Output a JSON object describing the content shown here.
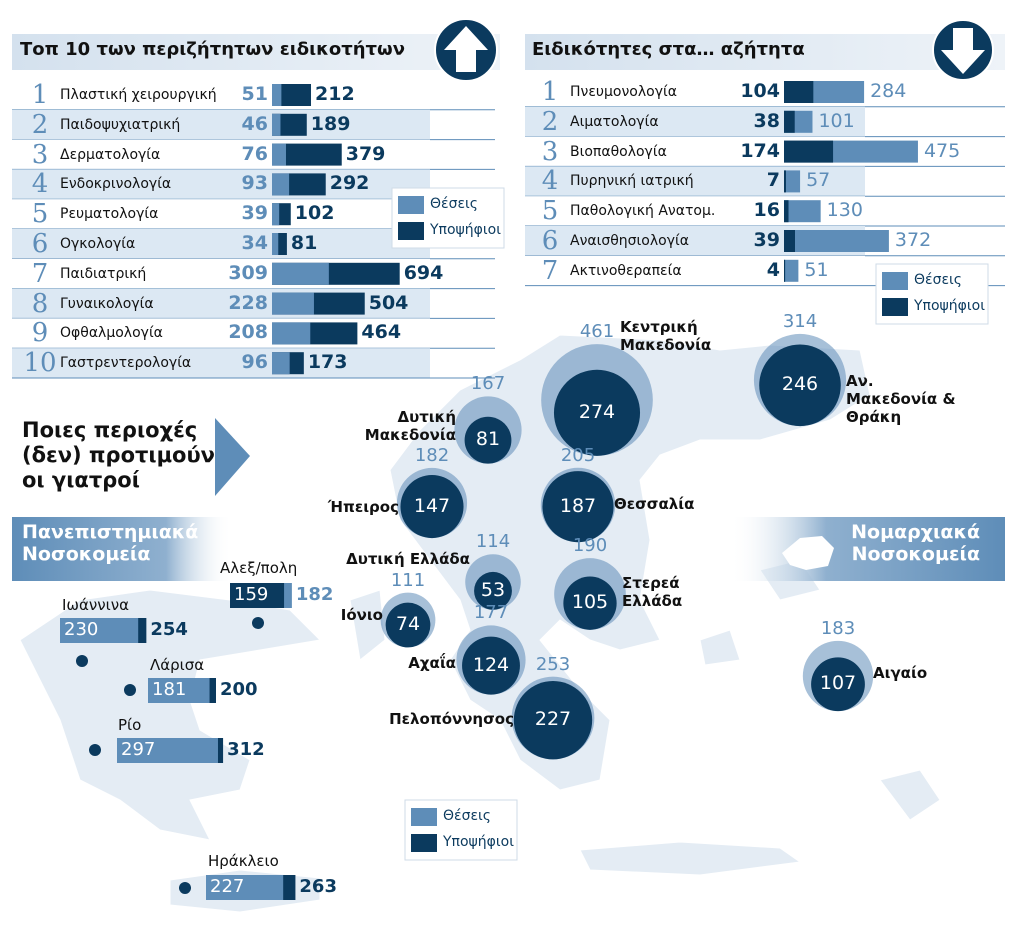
{
  "top_specialties": {
    "title": "Τοπ 10 των περιζήτητων ειδικοτήτων",
    "rows": [
      {
        "rank": 1,
        "name": "Πλαστική χειρουργική",
        "seats": 51,
        "candidates": 212
      },
      {
        "rank": 2,
        "name": "Παιδοψυχιατρική",
        "seats": 46,
        "candidates": 189
      },
      {
        "rank": 3,
        "name": "Δερματολογία",
        "seats": 76,
        "candidates": 379
      },
      {
        "rank": 4,
        "name": "Ενδοκρινολογία",
        "seats": 93,
        "candidates": 292
      },
      {
        "rank": 5,
        "name": "Ρευματολογία",
        "seats": 39,
        "candidates": 102
      },
      {
        "rank": 6,
        "name": "Ογκολογία",
        "seats": 34,
        "candidates": 81
      },
      {
        "rank": 7,
        "name": "Παιδιατρική",
        "seats": 309,
        "candidates": 694
      },
      {
        "rank": 8,
        "name": "Γυναικολογία",
        "seats": 228,
        "candidates": 504
      },
      {
        "rank": 9,
        "name": "Οφθαλμολογία",
        "seats": 208,
        "candidates": 464
      },
      {
        "rank": 10,
        "name": "Γαστρεντερολογία",
        "seats": 96,
        "candidates": 173
      }
    ]
  },
  "unpopular_specialties": {
    "title": "Ειδικότητες στα… αζήτητα",
    "rows": [
      {
        "rank": 1,
        "name": "Πνευμονολογία",
        "seats": 284,
        "candidates": 104
      },
      {
        "rank": 2,
        "name": "Αιματολογία",
        "seats": 101,
        "candidates": 38
      },
      {
        "rank": 3,
        "name": "Βιοπαθολογία",
        "seats": 475,
        "candidates": 174
      },
      {
        "rank": 4,
        "name": "Πυρηνική ιατρική",
        "seats": 57,
        "candidates": 7
      },
      {
        "rank": 5,
        "name": "Παθολογική Ανατομ.",
        "seats": 130,
        "candidates": 16
      },
      {
        "rank": 6,
        "name": "Αναισθησιολογία",
        "seats": 372,
        "candidates": 39
      },
      {
        "rank": 7,
        "name": "Ακτινοθεραπεία",
        "seats": 51,
        "candidates": 4
      }
    ]
  },
  "legend": {
    "seats": "Θέσεις",
    "candidates": "Υποψήφιοι"
  },
  "regions_heading": "Ποιες περιοχές (δεν) προτιμούν οι γιατροί",
  "university_hospitals": {
    "title": "Πανεπιστημιακά Νοσοκομεία",
    "items": [
      {
        "name": "Αλεξ/πολη",
        "seats": 182,
        "candidates": 159
      },
      {
        "name": "Ιωάννινα",
        "seats": 230,
        "candidates": 254
      },
      {
        "name": "Λάρισα",
        "seats": 181,
        "candidates": 200
      },
      {
        "name": "Ρίο",
        "seats": 297,
        "candidates": 312
      },
      {
        "name": "Ηράκλειο",
        "seats": 227,
        "candidates": 263
      }
    ]
  },
  "prefectural_hospitals": {
    "title": "Νομαρχιακά Νοσοκομεία",
    "items": [
      {
        "name": "Κεντρική Μακεδονία",
        "seats": 461,
        "candidates": 274
      },
      {
        "name": "Αν. Μακεδονία & Θράκη",
        "seats": 314,
        "candidates": 246
      },
      {
        "name": "Δυτική Μακεδονία",
        "seats": 167,
        "candidates": 81
      },
      {
        "name": "Ήπειρος",
        "seats": 182,
        "candidates": 147
      },
      {
        "name": "Θεσσαλία",
        "seats": 205,
        "candidates": 187
      },
      {
        "name": "Δυτική Ελλάδα",
        "seats": 114,
        "candidates": 53
      },
      {
        "name": "Στερεά Ελλάδα",
        "seats": 190,
        "candidates": 105
      },
      {
        "name": "Ιόνιο",
        "seats": 111,
        "candidates": 74
      },
      {
        "name": "Αχαΐα",
        "seats": 177,
        "candidates": 124
      },
      {
        "name": "Πελοπόννησος",
        "seats": 253,
        "candidates": 227
      },
      {
        "name": "Αιγαίο",
        "seats": 183,
        "candidates": 107
      }
    ]
  }
}
